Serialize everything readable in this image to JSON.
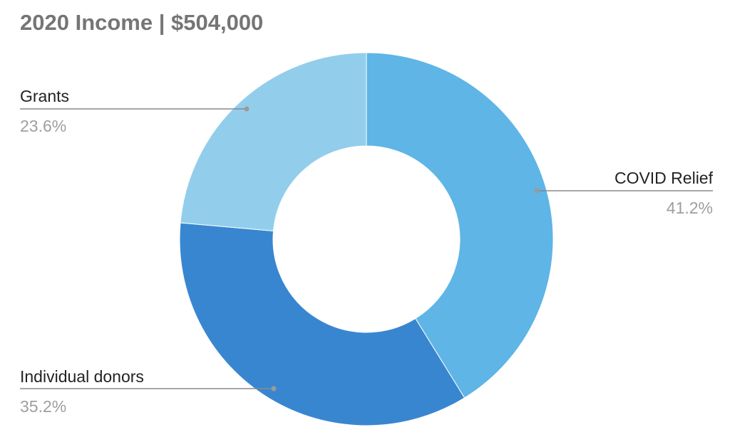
{
  "chart_data": {
    "type": "pie",
    "title": "2020 Income | $504,000",
    "donut": true,
    "slices": [
      {
        "label": "COVID Relief",
        "value": 41.2,
        "percent_label": "41.2%",
        "color": "#5eb5e6"
      },
      {
        "label": "Individual donors",
        "value": 35.2,
        "percent_label": "35.2%",
        "color": "#3986d0"
      },
      {
        "label": "Grants",
        "value": 23.6,
        "percent_label": "23.6%",
        "color": "#92ceeb"
      }
    ],
    "legend": "none",
    "label_style": "callout"
  }
}
